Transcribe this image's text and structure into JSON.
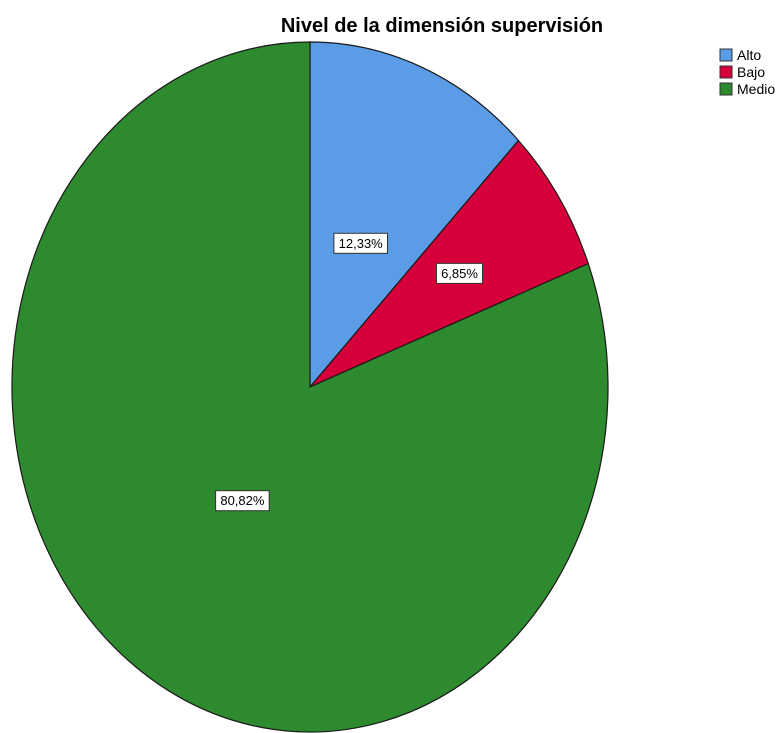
{
  "chart_data": {
    "type": "pie",
    "title": "Nivel de la dimensión supervisión",
    "slices": [
      {
        "name": "Alto",
        "value": 12.33,
        "label": "12,33%",
        "color": "#5a9de6"
      },
      {
        "name": "Bajo",
        "value": 6.85,
        "label": "6,85%",
        "color": "#d6003a"
      },
      {
        "name": "Medio",
        "value": 80.82,
        "label": "80,82%",
        "color": "#2e8a2e"
      }
    ],
    "start_angle_deg": 0,
    "direction": "clockwise",
    "legend": {
      "position": "top-right",
      "entries": [
        "Alto",
        "Bajo",
        "Medio"
      ]
    }
  }
}
